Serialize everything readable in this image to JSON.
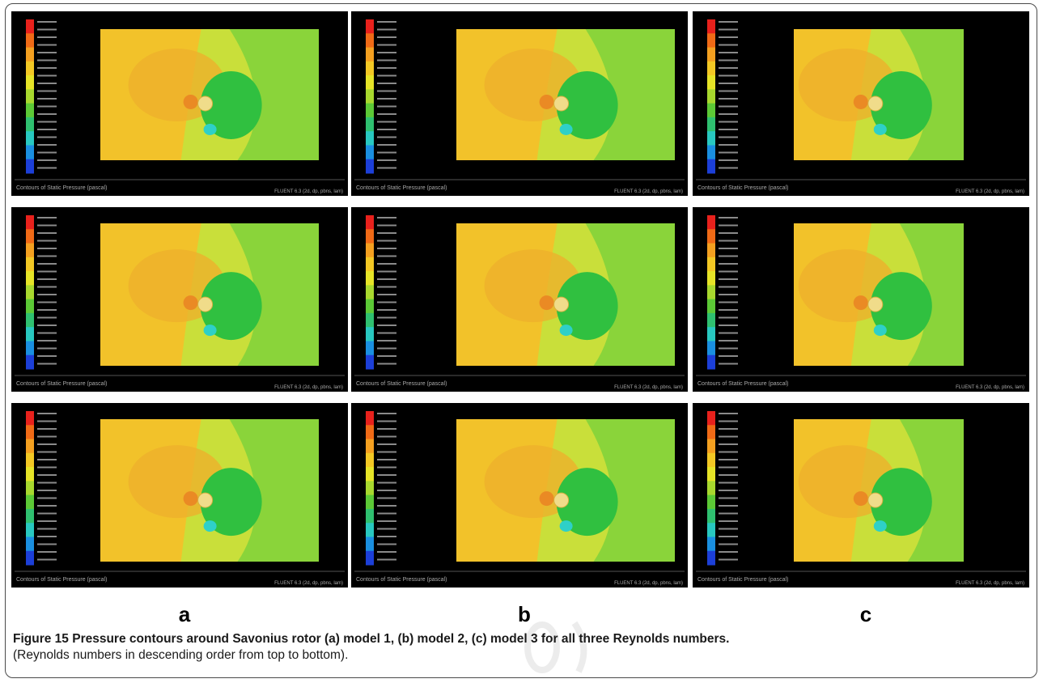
{
  "figure": {
    "label": "Figure 15",
    "title": "Pressure contours around Savonius rotor (a) model 1, (b) model 2, (c) model 3 for all three Reynolds numbers.",
    "note": "(Reynolds numbers in descending order from top to bottom)."
  },
  "columns": [
    {
      "label": "a"
    },
    {
      "label": "b"
    },
    {
      "label": "c"
    }
  ],
  "panels": [
    {
      "row": 0,
      "col": 0,
      "footer_left": "Contours of Static Pressure (pascal)",
      "footer_right": "FLUENT 6.3 (2d, dp, pbns, lam)"
    },
    {
      "row": 0,
      "col": 1,
      "footer_left": "Contours of Static Pressure (pascal)",
      "footer_right": "FLUENT 6.3 (2d, dp, pbns, lam)"
    },
    {
      "row": 0,
      "col": 2,
      "footer_left": "Contours of Static Pressure (pascal)",
      "footer_right": "FLUENT 6.3 (2d, dp, pbns, lam)"
    },
    {
      "row": 1,
      "col": 0,
      "footer_left": "Contours of Static Pressure (pascal)",
      "footer_right": "FLUENT 6.3 (2d, dp, pbns, lam)"
    },
    {
      "row": 1,
      "col": 1,
      "footer_left": "Contours of Static Pressure (pascal)",
      "footer_right": "FLUENT 6.3 (2d, dp, pbns, lam)"
    },
    {
      "row": 1,
      "col": 2,
      "footer_left": "Contours of Static Pressure (pascal)",
      "footer_right": "FLUENT 6.3 (2d, dp, pbns, lam)"
    },
    {
      "row": 2,
      "col": 0,
      "footer_left": "Contours of Static Pressure (pascal)",
      "footer_right": "FLUENT 6.3 (2d, dp, pbns, lam)"
    },
    {
      "row": 2,
      "col": 1,
      "footer_left": "Contours of Static Pressure (pascal)",
      "footer_right": "FLUENT 6.3 (2d, dp, pbns, lam)"
    },
    {
      "row": 2,
      "col": 2,
      "footer_left": "Contours of Static Pressure (pascal)",
      "footer_right": "FLUENT 6.3 (2d, dp, pbns, lam)"
    }
  ],
  "colors": {
    "colormap": [
      "#e8211c",
      "#f06a16",
      "#f4a020",
      "#f3c824",
      "#e6e427",
      "#a8d82e",
      "#5cc936",
      "#2fc070",
      "#28c8c0",
      "#1a8fe0",
      "#1c3fd8"
    ],
    "background": "#000000",
    "upstream": "#f2c22a",
    "mid": "#c9df3a",
    "downstream": "#8ad43a",
    "wake": "#30c040"
  }
}
